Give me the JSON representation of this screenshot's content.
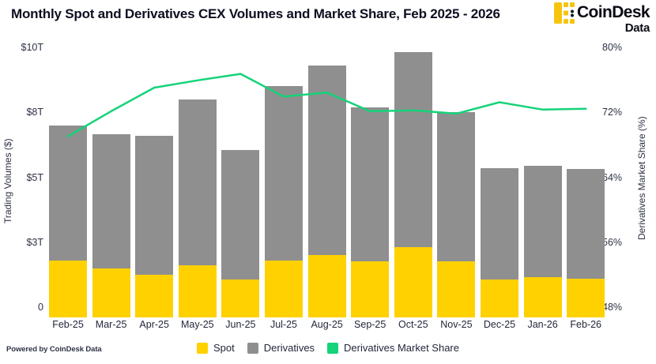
{
  "header": {
    "title": "Monthly Spot and Derivatives CEX Volumes and Market Share, Feb 2025 - 2026"
  },
  "logo": {
    "name": "CoinDesk",
    "suffix": "Data",
    "icon_color": "#F6C40E",
    "dot_color": "#101321"
  },
  "axes": {
    "left": {
      "title": "Trading Volumes ($)",
      "ticks": [
        "$10T",
        "$8T",
        "$5T",
        "$3T",
        "0"
      ]
    },
    "right": {
      "title": "Derivatives Market Share (%)",
      "ticks": [
        "80%",
        "72%",
        "64%",
        "56%",
        "48%"
      ]
    }
  },
  "legend": [
    {
      "label": "Spot",
      "color": "#FFD100"
    },
    {
      "label": "Derivatives",
      "color": "#8F8F8F"
    },
    {
      "label": "Derivatives Market Share",
      "color": "#15D379"
    }
  ],
  "footer": {
    "powered_by": "Powered by CoinDesk Data"
  },
  "chart_data": {
    "type": "bar",
    "stacked": true,
    "title": "Monthly Spot and Derivatives CEX Volumes and Market Share, Feb 2025 - 2026",
    "categories": [
      "Feb-25",
      "Mar-25",
      "Apr-25",
      "May-25",
      "Jun-25",
      "Jul-25",
      "Aug-25",
      "Sep-25",
      "Oct-25",
      "Nov-25",
      "Dec-25",
      "Jan-26",
      "Feb-26"
    ],
    "series": [
      {
        "name": "Spot",
        "type": "bar",
        "axis": "left",
        "color": "#FFD100",
        "values": [
          2.2,
          1.9,
          1.65,
          2.0,
          1.45,
          2.2,
          2.4,
          2.15,
          2.7,
          2.15,
          1.45,
          1.55,
          1.5
        ]
      },
      {
        "name": "Derivatives",
        "type": "bar",
        "axis": "left",
        "color": "#8F8F8F",
        "values": [
          5.2,
          5.15,
          5.35,
          6.4,
          5.0,
          6.7,
          7.3,
          5.95,
          7.5,
          5.75,
          4.3,
          4.3,
          4.2
        ]
      },
      {
        "name": "Derivatives Market Share",
        "type": "line",
        "axis": "right",
        "color": "#15D379",
        "values": [
          70.3,
          73.4,
          76.3,
          77.2,
          78.0,
          75.2,
          75.7,
          73.4,
          73.5,
          73.1,
          74.5,
          73.6,
          73.7
        ]
      }
    ],
    "totals_left_axis": [
      7.4,
      7.05,
      7.0,
      8.4,
      6.45,
      8.9,
      9.7,
      8.1,
      10.2,
      7.9,
      5.75,
      5.85,
      5.7
    ],
    "left_ylabel": "Trading Volumes ($)",
    "right_ylabel": "Derivatives Market Share (%)",
    "left_ylim": [
      0,
      10
    ],
    "right_ylim": [
      48,
      80
    ],
    "grid": false,
    "legend_position": "bottom"
  }
}
